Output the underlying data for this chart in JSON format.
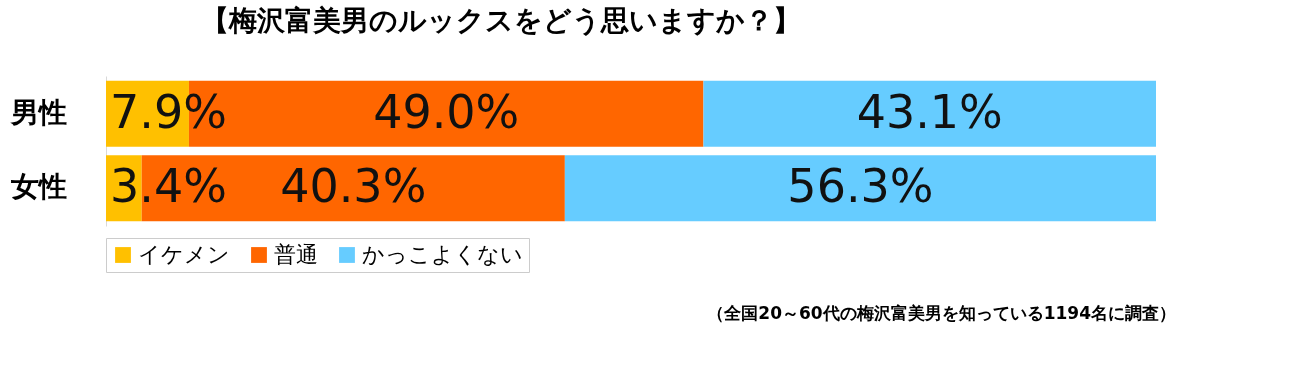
{
  "chart_data": {
    "type": "bar",
    "orientation": "horizontal",
    "stacked": true,
    "title": "【梅沢富美男のルックスをどう思いますか？】",
    "categories": [
      "男性",
      "女性"
    ],
    "series": [
      {
        "name": "イケメン",
        "color": "#ffc000",
        "values": [
          7.9,
          3.4
        ],
        "value_labels": [
          "7.9%",
          "3.4%"
        ]
      },
      {
        "name": "普通",
        "color": "#ff6600",
        "values": [
          49.0,
          40.3
        ],
        "value_labels": [
          "49.0%",
          "40.3%"
        ]
      },
      {
        "name": "かっこよくない",
        "color": "#66ccff",
        "values": [
          43.1,
          56.3
        ],
        "value_labels": [
          "43.1%",
          "56.3%"
        ]
      }
    ],
    "legend": "bottom",
    "annotations": [
      "（全国20～60代の梅沢富美男を知っている1194名に調査）"
    ]
  }
}
